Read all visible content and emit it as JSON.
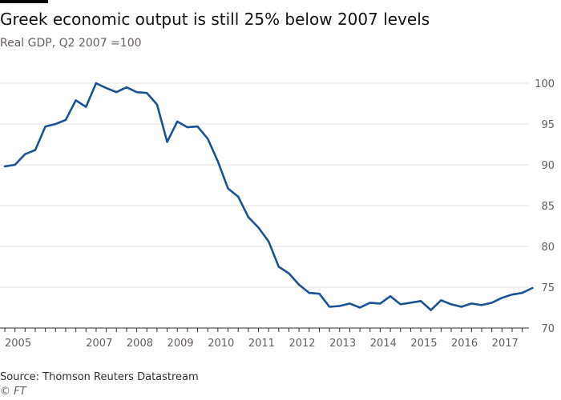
{
  "title": "Greek economic output is still 25% below 2007 levels",
  "subtitle": "Real GDP, Q2 2007 =100",
  "source": "Source: Thomson Reuters Datastream",
  "credit": "© FT",
  "colors": {
    "line": "#1a5293",
    "grid": "#e6e0d9",
    "axis": "#33302e",
    "text": "#66605c"
  },
  "chart_data": {
    "type": "line",
    "title": "Greek economic output is still 25% below 2007 levels",
    "subtitle": "Real GDP, Q2 2007 =100",
    "xlabel": "",
    "ylabel": "",
    "ylim": [
      70,
      100
    ],
    "yticks": [
      70,
      75,
      80,
      85,
      90,
      95,
      100
    ],
    "y_axis_side": "right",
    "x_ticks": [
      "2005",
      "2007",
      "2008",
      "2009",
      "2010",
      "2011",
      "2012",
      "2013",
      "2014",
      "2015",
      "2016",
      "2017"
    ],
    "x_start": "2005 Q1",
    "frequency": "quarterly",
    "grid": true,
    "series": [
      {
        "values": [
          89.8,
          90.0,
          91.3,
          91.8,
          94.7,
          95.0,
          95.5,
          97.9,
          97.1,
          100.0,
          99.4,
          98.9,
          99.5,
          98.9,
          98.8,
          97.4,
          92.8,
          95.3,
          94.6,
          94.7,
          93.2,
          90.4,
          87.1,
          86.1,
          83.6,
          82.3,
          80.6,
          77.5,
          76.7,
          75.3,
          74.3,
          74.2,
          72.6,
          72.7,
          73.0,
          72.5,
          73.1,
          73.0,
          73.9,
          72.9,
          73.1,
          73.3,
          72.2,
          73.4,
          72.9,
          72.6,
          73.0,
          72.8,
          73.1,
          73.7,
          74.1,
          74.3,
          74.9
        ]
      }
    ]
  }
}
